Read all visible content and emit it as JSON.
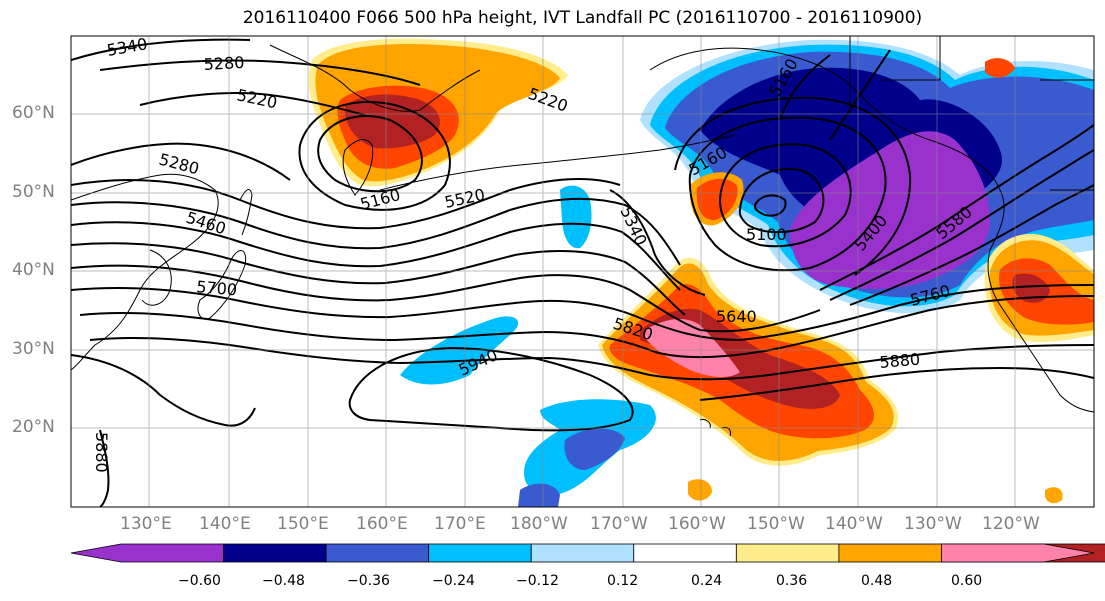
{
  "title": "2016110400 F066 500 hPa height, IVT Landfall PC (2016110700 - 2016110900)",
  "lat_labels": [
    "60°N",
    "50°N",
    "40°N",
    "30°N",
    "20°N"
  ],
  "lon_labels": [
    "130°E",
    "140°E",
    "150°E",
    "160°E",
    "170°E",
    "180°W",
    "170°W",
    "160°W",
    "150°W",
    "140°W",
    "130°W",
    "120°W"
  ],
  "contour_labels": [
    "5340",
    "5280",
    "5220",
    "5280",
    "5460",
    "5160",
    "5520",
    "5700",
    "5220",
    "5160",
    "5340",
    "5100",
    "5160",
    "5400",
    "5580",
    "5640",
    "5760",
    "5820",
    "5880",
    "5940",
    "5880"
  ],
  "colorbar": {
    "colors": [
      "#9932CC",
      "#00008B",
      "#3A5BCF",
      "#00BFFF",
      "#B0E2FF",
      "#FFFFFF",
      "#FFEC8B",
      "#FFA500",
      "#FF4500",
      "#B22222",
      "#FF82AB"
    ],
    "tick_labels": [
      "−0.60",
      "−0.48",
      "−0.36",
      "−0.24",
      "−0.12",
      "0.12",
      "0.24",
      "0.36",
      "0.48",
      "0.60"
    ]
  }
}
